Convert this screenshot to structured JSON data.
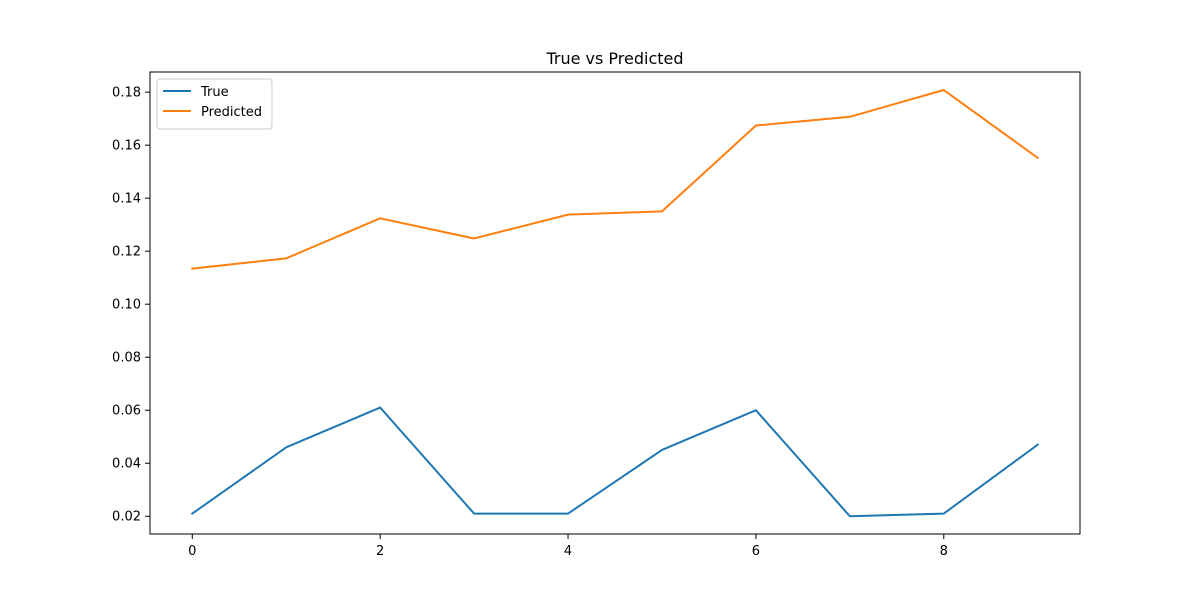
{
  "chart_data": {
    "type": "line",
    "title": "True vs Predicted",
    "xlabel": "",
    "ylabel": "",
    "x": [
      0,
      1,
      2,
      3,
      4,
      5,
      6,
      7,
      8,
      9
    ],
    "xlim": [
      -0.45,
      9.45
    ],
    "ylim": [
      0.0133,
      0.1876
    ],
    "x_ticks": [
      0,
      2,
      4,
      6,
      8
    ],
    "x_tick_labels": [
      "0",
      "2",
      "4",
      "6",
      "8"
    ],
    "y_ticks": [
      0.02,
      0.04,
      0.06,
      0.08,
      0.1,
      0.12,
      0.14,
      0.16,
      0.18
    ],
    "y_tick_labels": [
      "0.02",
      "0.04",
      "0.06",
      "0.08",
      "0.10",
      "0.12",
      "0.14",
      "0.16",
      "0.18"
    ],
    "grid": false,
    "legend_position": "top-left",
    "series": [
      {
        "name": "True",
        "color": "#1f77b4",
        "values": [
          0.021,
          0.046,
          0.061,
          0.021,
          0.021,
          0.045,
          0.06,
          0.02,
          0.021,
          0.047
        ]
      },
      {
        "name": "Predicted",
        "color": "#ff7f0e",
        "values": [
          0.1134,
          0.1173,
          0.1324,
          0.1248,
          0.1338,
          0.135,
          0.1674,
          0.1707,
          0.1808,
          0.1552
        ]
      }
    ]
  }
}
